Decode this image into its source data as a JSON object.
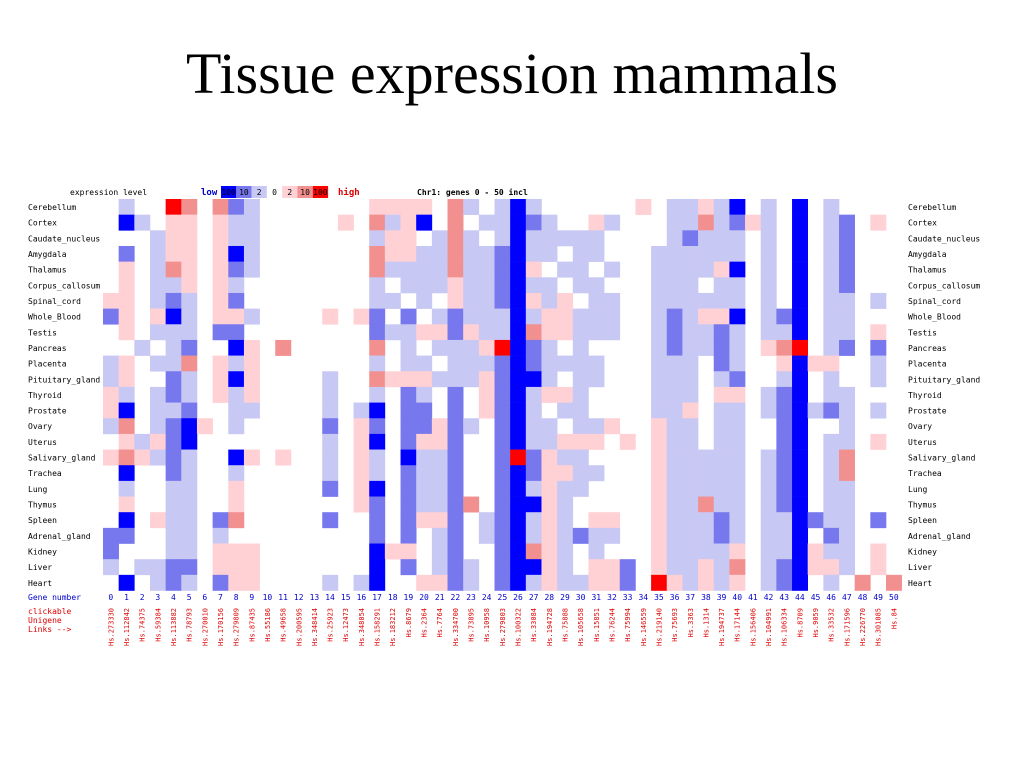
{
  "slide": {
    "title": "Tissue expression mammals"
  },
  "legend": {
    "label": "expression level",
    "low": "low",
    "high": "high",
    "scale": [
      "100",
      "10",
      "2",
      "0",
      "2",
      "10",
      "100"
    ],
    "scale_colors": [
      "#0000ff",
      "#7777ee",
      "#c8c8f4",
      "#ffffff",
      "#ffd0d4",
      "#f29090",
      "#ff0000"
    ],
    "info": "Chr1: genes 0 - 50 incl"
  },
  "footer": {
    "gene_number_label": "Gene number",
    "links_label": [
      "clickable",
      "Unigene",
      "Links -->"
    ]
  },
  "chart_data": {
    "type": "heatmap",
    "title": "Tissue expression mammals",
    "x_label": "Gene number",
    "x": [
      0,
      1,
      2,
      3,
      4,
      5,
      6,
      7,
      8,
      9,
      10,
      11,
      12,
      13,
      14,
      15,
      16,
      17,
      18,
      19,
      20,
      21,
      22,
      23,
      24,
      25,
      26,
      27,
      28,
      29,
      30,
      31,
      32,
      33,
      34,
      35,
      36,
      37,
      38,
      39,
      40,
      41,
      42,
      43,
      44,
      45,
      46,
      47,
      48,
      49,
      50
    ],
    "unigene": [
      "Hs.273330",
      "Hs.112842",
      "Hs.74375",
      "Hs.59384",
      "Hs.113882",
      "Hs.78793",
      "Hs.270010",
      "Hs.170156",
      "Hs.279809",
      "Hs.87435",
      "Hs.55186",
      "Hs.49658",
      "Hs.200595",
      "Hs.348414",
      "Hs.25923",
      "Hs.12473",
      "Hs.348054",
      "Hs.158291",
      "Hs.183212",
      "Hs.8679",
      "Hs.2364",
      "Hs.7764",
      "Hs.334700",
      "Hs.73895",
      "Hs.10958",
      "Hs.279803",
      "Hs.100322",
      "Hs.33084",
      "Hs.194728",
      "Hs.75888",
      "Hs.105658",
      "Hs.15851",
      "Hs.76244",
      "Hs.75994",
      "Hs.146559",
      "Hs.219140",
      "Hs.75693",
      "Hs.3363",
      "Hs.1314",
      "Hs.194737",
      "Hs.17144",
      "Hs.156406",
      "Hs.104991",
      "Hs.106334",
      "Hs.8709",
      "Hs.9059",
      "Hs.33532",
      "Hs.171596",
      "Hs.226770",
      "Hs.301085",
      "Hs.84"
    ],
    "tissues": [
      "Cerebellum",
      "Cortex",
      "Caudate_nucleus",
      "Amygdala",
      "Thalamus",
      "Corpus_callosum",
      "Spinal_cord",
      "Whole_Blood",
      "Testis",
      "Pancreas",
      "Placenta",
      "Pituitary_gland",
      "Thyroid",
      "Prostate",
      "Ovary",
      "Uterus",
      "Salivary_gland",
      "Trachea",
      "Lung",
      "Thymus",
      "Spleen",
      "Adrenal_gland",
      "Kidney",
      "Liver",
      "Heart"
    ],
    "value_scale": "-3 = low 100, -2 = low 10, -1 = low 2, 0 = 0, 1 = high 2, 2 = high 10, 3 = high 100",
    "values": [
      [
        0,
        -1,
        0,
        0,
        3,
        2,
        0,
        2,
        -2,
        -1,
        0,
        0,
        0,
        0,
        0,
        0,
        0,
        1,
        1,
        1,
        1,
        0,
        2,
        -1,
        0,
        -1,
        -3,
        -1,
        0,
        0,
        0,
        0,
        0,
        0,
        1,
        0,
        -1,
        -1,
        1,
        -1,
        -3,
        0,
        -1,
        0,
        -3,
        0,
        -1,
        0,
        0,
        0,
        0
      ],
      [
        0,
        -3,
        -1,
        0,
        1,
        1,
        0,
        1,
        -1,
        -1,
        0,
        0,
        0,
        0,
        0,
        1,
        0,
        2,
        -1,
        1,
        -3,
        0,
        2,
        0,
        -1,
        -1,
        -3,
        -2,
        -1,
        0,
        0,
        1,
        -1,
        0,
        0,
        0,
        -1,
        -1,
        2,
        -1,
        -2,
        1,
        -1,
        0,
        -3,
        0,
        -1,
        -2,
        0,
        1,
        0
      ],
      [
        0,
        0,
        0,
        -1,
        1,
        1,
        0,
        1,
        -1,
        -1,
        0,
        0,
        0,
        0,
        0,
        0,
        0,
        -1,
        1,
        1,
        0,
        -1,
        2,
        -1,
        0,
        -1,
        -3,
        -1,
        -1,
        -1,
        -1,
        -1,
        0,
        0,
        0,
        0,
        -1,
        -2,
        -1,
        -1,
        -1,
        0,
        -1,
        0,
        -3,
        0,
        -1,
        -2,
        0,
        0,
        0
      ],
      [
        0,
        -2,
        0,
        -1,
        1,
        1,
        0,
        1,
        -3,
        -1,
        0,
        0,
        0,
        0,
        0,
        0,
        0,
        2,
        1,
        1,
        -1,
        -1,
        2,
        -1,
        -1,
        -2,
        -3,
        -1,
        -1,
        0,
        -1,
        -1,
        0,
        0,
        0,
        -1,
        -1,
        -1,
        -1,
        -1,
        -1,
        0,
        -1,
        0,
        -3,
        0,
        -1,
        -2,
        0,
        0,
        0
      ],
      [
        0,
        1,
        0,
        -1,
        2,
        1,
        0,
        1,
        -2,
        -1,
        0,
        0,
        0,
        0,
        0,
        0,
        0,
        2,
        -1,
        -1,
        -1,
        -1,
        2,
        -1,
        -1,
        -2,
        -3,
        1,
        0,
        -1,
        -1,
        0,
        -1,
        0,
        0,
        -1,
        -1,
        -1,
        -1,
        1,
        -3,
        0,
        -1,
        0,
        -3,
        0,
        -1,
        -2,
        0,
        0,
        0
      ],
      [
        0,
        1,
        0,
        -1,
        -1,
        1,
        0,
        1,
        -1,
        0,
        0,
        0,
        0,
        0,
        0,
        0,
        0,
        -1,
        0,
        -1,
        -1,
        -1,
        1,
        -1,
        -1,
        -2,
        -3,
        -1,
        -1,
        0,
        -1,
        -1,
        0,
        0,
        0,
        -1,
        -1,
        -1,
        0,
        -1,
        -1,
        0,
        -1,
        0,
        -3,
        0,
        -1,
        -2,
        0,
        0,
        0
      ],
      [
        1,
        1,
        0,
        -1,
        -2,
        -1,
        0,
        1,
        -2,
        0,
        0,
        0,
        0,
        0,
        0,
        0,
        0,
        -1,
        -1,
        0,
        -1,
        0,
        1,
        -1,
        -1,
        -2,
        -3,
        1,
        -1,
        1,
        0,
        -1,
        -1,
        0,
        0,
        -1,
        -1,
        -1,
        -1,
        -1,
        -1,
        0,
        -1,
        0,
        -3,
        0,
        -1,
        -1,
        0,
        -1,
        0
      ],
      [
        -2,
        1,
        0,
        1,
        -3,
        -1,
        0,
        1,
        1,
        -1,
        0,
        0,
        0,
        0,
        1,
        0,
        1,
        -2,
        0,
        -2,
        0,
        -1,
        -2,
        -1,
        -1,
        -1,
        -3,
        -1,
        1,
        1,
        -1,
        -1,
        -1,
        0,
        0,
        -1,
        -2,
        -1,
        1,
        1,
        -3,
        0,
        -1,
        -2,
        -3,
        0,
        -1,
        -1,
        0,
        0,
        0
      ],
      [
        0,
        1,
        0,
        -1,
        -1,
        -1,
        0,
        -2,
        -2,
        0,
        0,
        0,
        0,
        0,
        0,
        0,
        0,
        -2,
        -1,
        -1,
        1,
        1,
        -2,
        1,
        -1,
        -1,
        -3,
        2,
        1,
        1,
        -1,
        -1,
        -1,
        0,
        0,
        -1,
        -2,
        -1,
        -1,
        -2,
        -1,
        0,
        -1,
        -1,
        -3,
        0,
        -1,
        -1,
        0,
        1,
        0
      ],
      [
        0,
        0,
        -1,
        0,
        -1,
        -2,
        0,
        0,
        -3,
        1,
        0,
        2,
        0,
        0,
        0,
        0,
        0,
        2,
        0,
        -1,
        0,
        -1,
        -1,
        -1,
        1,
        3,
        -3,
        -2,
        -1,
        0,
        -1,
        0,
        0,
        0,
        0,
        -1,
        -2,
        -1,
        -1,
        -2,
        -1,
        0,
        1,
        2,
        3,
        0,
        -1,
        -2,
        0,
        -2,
        0
      ],
      [
        -1,
        1,
        0,
        -1,
        -1,
        2,
        0,
        1,
        -1,
        1,
        0,
        0,
        0,
        0,
        0,
        0,
        0,
        -1,
        0,
        -1,
        -1,
        0,
        -1,
        -1,
        -1,
        -2,
        -3,
        -2,
        -1,
        -1,
        -1,
        -1,
        0,
        0,
        0,
        -1,
        -1,
        -1,
        0,
        -2,
        -1,
        0,
        0,
        1,
        -3,
        1,
        1,
        0,
        0,
        -1,
        0
      ],
      [
        -1,
        1,
        0,
        0,
        -2,
        -1,
        0,
        1,
        -3,
        1,
        0,
        0,
        0,
        0,
        -1,
        0,
        0,
        2,
        1,
        1,
        1,
        -1,
        -1,
        -1,
        1,
        -2,
        -3,
        -3,
        -1,
        0,
        -1,
        -1,
        0,
        0,
        0,
        -1,
        -1,
        -1,
        0,
        -1,
        -2,
        0,
        0,
        -1,
        -3,
        0,
        -1,
        0,
        0,
        -1,
        0
      ],
      [
        1,
        -1,
        0,
        -1,
        -2,
        -1,
        0,
        1,
        -1,
        1,
        0,
        0,
        0,
        0,
        -1,
        0,
        0,
        -1,
        0,
        -2,
        -1,
        0,
        -2,
        0,
        1,
        -2,
        -3,
        -1,
        1,
        1,
        -1,
        0,
        0,
        0,
        0,
        -1,
        -1,
        -1,
        0,
        1,
        1,
        0,
        -1,
        -2,
        -3,
        0,
        -1,
        -1,
        0,
        0,
        0
      ],
      [
        1,
        -3,
        0,
        -1,
        -1,
        -2,
        0,
        0,
        -1,
        -1,
        0,
        0,
        0,
        0,
        -1,
        0,
        -1,
        -3,
        0,
        -2,
        -2,
        0,
        -2,
        0,
        1,
        -2,
        -3,
        -1,
        0,
        -1,
        -1,
        0,
        0,
        0,
        0,
        -1,
        -1,
        1,
        0,
        -1,
        -1,
        0,
        -1,
        -2,
        -3,
        -1,
        -2,
        -1,
        0,
        -1,
        0
      ],
      [
        -1,
        2,
        0,
        -1,
        -2,
        -3,
        1,
        0,
        -1,
        0,
        0,
        0,
        0,
        0,
        -2,
        0,
        1,
        -2,
        0,
        -2,
        -2,
        1,
        -2,
        -1,
        0,
        -2,
        -3,
        -1,
        -1,
        0,
        -1,
        -1,
        1,
        0,
        0,
        1,
        -1,
        -1,
        0,
        -1,
        -1,
        0,
        0,
        -2,
        -3,
        0,
        0,
        -1,
        0,
        0,
        0
      ],
      [
        0,
        1,
        -1,
        1,
        -2,
        -3,
        0,
        0,
        0,
        0,
        0,
        0,
        0,
        0,
        -1,
        0,
        1,
        -3,
        0,
        -2,
        1,
        1,
        -2,
        0,
        0,
        -2,
        -3,
        -1,
        -1,
        1,
        1,
        1,
        0,
        1,
        0,
        1,
        -1,
        -1,
        0,
        -1,
        -1,
        0,
        0,
        -2,
        -3,
        0,
        -1,
        -1,
        0,
        1,
        0
      ],
      [
        1,
        2,
        1,
        -1,
        -2,
        -1,
        0,
        0,
        -3,
        1,
        0,
        1,
        0,
        0,
        -1,
        0,
        1,
        -1,
        0,
        -3,
        -1,
        -1,
        -2,
        0,
        0,
        -2,
        3,
        -2,
        1,
        -1,
        -1,
        0,
        0,
        0,
        0,
        1,
        -1,
        -1,
        -1,
        -1,
        -1,
        0,
        -1,
        -2,
        -3,
        0,
        -1,
        2,
        0,
        0,
        0
      ],
      [
        0,
        -3,
        0,
        0,
        -2,
        -1,
        0,
        0,
        -1,
        0,
        0,
        0,
        0,
        0,
        -1,
        0,
        1,
        -1,
        0,
        -2,
        -1,
        -1,
        -2,
        0,
        0,
        -2,
        -3,
        -2,
        1,
        1,
        -1,
        -1,
        0,
        0,
        0,
        1,
        -1,
        -1,
        -1,
        -1,
        -1,
        0,
        -1,
        -2,
        -3,
        0,
        -1,
        2,
        0,
        0,
        0
      ],
      [
        0,
        -1,
        0,
        0,
        -1,
        -1,
        0,
        0,
        1,
        0,
        0,
        0,
        0,
        0,
        -2,
        0,
        1,
        -3,
        0,
        -2,
        -1,
        -1,
        -2,
        0,
        0,
        -2,
        -3,
        -1,
        1,
        -1,
        -1,
        0,
        0,
        0,
        0,
        1,
        -1,
        -1,
        -1,
        -1,
        -1,
        0,
        -1,
        -2,
        -3,
        0,
        -1,
        -1,
        0,
        0,
        0
      ],
      [
        0,
        1,
        0,
        0,
        -1,
        -1,
        0,
        0,
        1,
        0,
        0,
        0,
        0,
        0,
        0,
        0,
        1,
        -2,
        0,
        -2,
        -1,
        -1,
        -2,
        2,
        0,
        -2,
        -3,
        -3,
        1,
        -1,
        0,
        0,
        0,
        0,
        0,
        1,
        -1,
        -1,
        2,
        -1,
        -1,
        0,
        -1,
        -2,
        -3,
        0,
        -1,
        -1,
        0,
        0,
        0
      ],
      [
        0,
        -3,
        0,
        1,
        -1,
        -1,
        0,
        -2,
        2,
        0,
        0,
        0,
        0,
        0,
        -2,
        0,
        0,
        -2,
        0,
        -2,
        1,
        1,
        -2,
        0,
        -1,
        -2,
        -3,
        -1,
        1,
        -1,
        0,
        1,
        1,
        0,
        0,
        1,
        -1,
        -1,
        -1,
        -2,
        -1,
        0,
        -1,
        -1,
        -3,
        -2,
        -1,
        -1,
        0,
        -2,
        0
      ],
      [
        -2,
        -2,
        0,
        0,
        -1,
        -1,
        0,
        -1,
        0,
        0,
        0,
        0,
        0,
        0,
        0,
        0,
        0,
        -2,
        0,
        -2,
        0,
        -1,
        -2,
        0,
        -1,
        -2,
        -3,
        -1,
        1,
        -1,
        -2,
        -1,
        -1,
        0,
        0,
        1,
        -1,
        -1,
        -1,
        -2,
        -1,
        0,
        -1,
        -1,
        -3,
        0,
        -2,
        -1,
        0,
        0,
        0
      ],
      [
        -2,
        0,
        0,
        0,
        -1,
        -1,
        0,
        1,
        1,
        1,
        0,
        0,
        0,
        0,
        0,
        0,
        0,
        -3,
        1,
        1,
        0,
        -1,
        -2,
        0,
        0,
        -2,
        -3,
        2,
        1,
        -1,
        0,
        -1,
        0,
        0,
        0,
        1,
        -1,
        -1,
        -1,
        -1,
        1,
        0,
        -1,
        -1,
        -3,
        1,
        -1,
        -1,
        0,
        1,
        0
      ],
      [
        -1,
        0,
        -1,
        -1,
        -2,
        -2,
        0,
        1,
        1,
        1,
        0,
        0,
        0,
        0,
        0,
        0,
        0,
        -3,
        0,
        -2,
        0,
        -1,
        -2,
        -1,
        0,
        -2,
        -3,
        -3,
        1,
        -1,
        0,
        1,
        1,
        -2,
        0,
        1,
        -1,
        -1,
        1,
        -1,
        2,
        0,
        -1,
        -2,
        -3,
        1,
        1,
        -1,
        0,
        1,
        0
      ],
      [
        0,
        -3,
        0,
        -1,
        -2,
        -1,
        0,
        -2,
        1,
        1,
        0,
        0,
        0,
        0,
        -1,
        0,
        -1,
        -3,
        0,
        0,
        1,
        1,
        -2,
        -1,
        0,
        -2,
        -3,
        -1,
        1,
        -1,
        -1,
        1,
        1,
        -2,
        0,
        3,
        1,
        -1,
        1,
        -1,
        1,
        0,
        -1,
        -2,
        -3,
        0,
        -1,
        0,
        2,
        0,
        2
      ]
    ]
  }
}
